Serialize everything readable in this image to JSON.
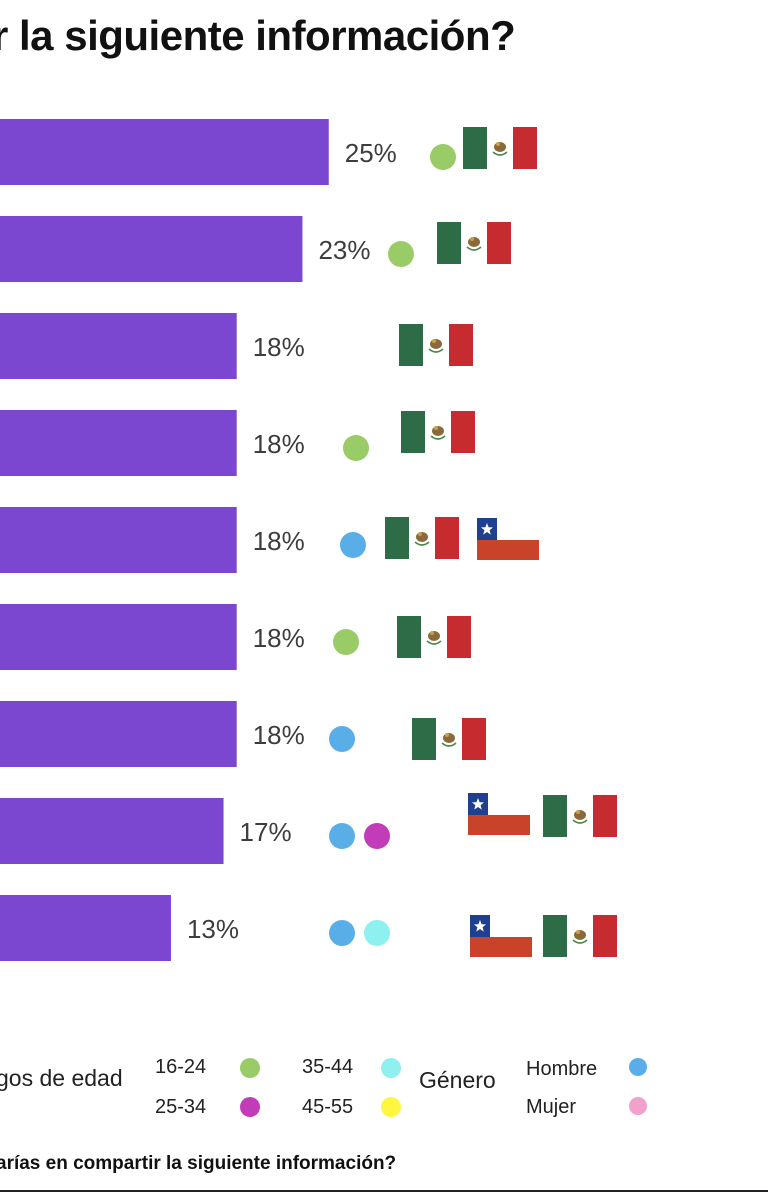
{
  "title": "r la siguiente información?",
  "footer_question": "arías en compartir la siguiente información?",
  "colors": {
    "bar": "#7b47d1",
    "label": "#3d3d3d",
    "age_16_24": "#99cc66",
    "age_25_34": "#c23bb8",
    "age_35_44": "#8ff0f0",
    "age_45_55": "#fff640",
    "hombre": "#5aaee8",
    "mujer": "#f2a0cc",
    "mexico_green": "#2e6b47",
    "mexico_red": "#c62b2f",
    "chile_blue": "#1f3f8f",
    "chile_red": "#c9422a"
  },
  "chart_data": {
    "type": "bar",
    "orientation": "horizontal",
    "values": [
      25,
      23,
      18,
      18,
      18,
      18,
      18,
      17,
      13
    ],
    "value_labels": [
      "25%",
      "23%",
      "18%",
      "18%",
      "18%",
      "18%",
      "18%",
      "17%",
      "13%"
    ],
    "row_markers": [
      {
        "dots": [
          "age_16_24"
        ],
        "flags": [
          "mexico"
        ]
      },
      {
        "dots": [
          "age_16_24"
        ],
        "flags": [
          "mexico"
        ]
      },
      {
        "dots": [],
        "flags": [
          "mexico"
        ]
      },
      {
        "dots": [
          "age_16_24"
        ],
        "flags": [
          "mexico"
        ]
      },
      {
        "dots": [
          "hombre"
        ],
        "flags": [
          "mexico",
          "chile"
        ]
      },
      {
        "dots": [
          "age_16_24"
        ],
        "flags": [
          "mexico"
        ]
      },
      {
        "dots": [
          "hombre"
        ],
        "flags": [
          "mexico"
        ]
      },
      {
        "dots": [
          "hombre",
          "age_25_34"
        ],
        "flags": [
          "chile",
          "mexico"
        ]
      },
      {
        "dots": [
          "hombre",
          "age_35_44"
        ],
        "flags": [
          "chile",
          "mexico"
        ]
      }
    ]
  },
  "legend": {
    "age_heading": "gos de edad",
    "gender_heading": "Género",
    "ages": [
      {
        "label": "16-24",
        "color_key": "age_16_24"
      },
      {
        "label": "25-34",
        "color_key": "age_25_34"
      },
      {
        "label": "35-44",
        "color_key": "age_35_44"
      },
      {
        "label": "45-55",
        "color_key": "age_45_55"
      }
    ],
    "genders": [
      {
        "label": "Hombre",
        "color_key": "hombre"
      },
      {
        "label": "Mujer",
        "color_key": "mujer"
      }
    ]
  }
}
